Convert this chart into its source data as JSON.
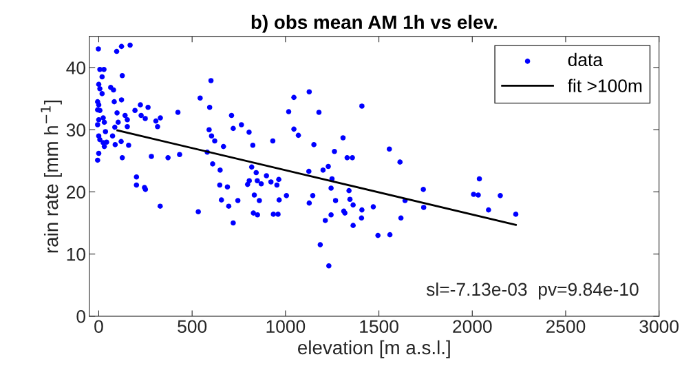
{
  "chart_data": {
    "type": "scatter",
    "title": "b) obs mean AM 1h vs elev.",
    "xlabel": "elevation [m a.s.l.]",
    "ylabel": "rain rate [mm h$^{−1}$]",
    "xlim": [
      -50,
      3000
    ],
    "xticks": [
      0,
      500,
      1000,
      1500,
      2000,
      2500,
      3000
    ],
    "ylim": [
      0,
      45
    ],
    "yticks": [
      0,
      10,
      20,
      30,
      40
    ],
    "grid": false,
    "legend": "top right",
    "marker": "circle",
    "annotations": [
      "sl=-7.13e-03  pv=9.84e-10"
    ],
    "series": [
      {
        "name": "data",
        "color": "#0000ff",
        "x": [
          -2,
          96,
          122,
          168,
          6,
          28,
          18,
          126,
          0,
          6,
          18,
          64,
          79,
          -6,
          0,
          -6,
          6,
          24,
          0,
          30,
          -6,
          36,
          0,
          6,
          24,
          30,
          42,
          0,
          -6,
          83,
          122,
          98,
          141,
          153,
          153,
          104,
          86,
          74,
          88,
          120,
          160,
          126,
          194,
          223,
          264,
          227,
          249,
          306,
          330,
          315,
          424,
          282,
          371,
          433,
          202,
          202,
          245,
          250,
          329,
          543,
          601,
          594,
          591,
          604,
          621,
          581,
          668,
          610,
          650,
          648,
          689,
          657,
          696,
          745,
          533,
          711,
          720,
          764,
          805,
          825,
          932,
          819,
          843,
          898,
          806,
          797,
          849,
          870,
          922,
          964,
          954,
          833,
          860,
          966,
          1005,
          1017,
          1045,
          1045,
          1127,
          1179,
          1409,
          1069,
          1152,
          1308,
          1262,
          1330,
          1358,
          1556,
          1613,
          1125,
          1201,
          1229,
          1249,
          1244,
          1146,
          1127,
          1340,
          1268,
          1345,
          1362,
          1409,
          1470,
          1312,
          1318,
          1244,
          1213,
          1407,
          1362,
          1618,
          1640,
          1738,
          1740,
          1495,
          1559,
          1186,
          1232,
          2038,
          2007,
          2032,
          2150,
          2087,
          2233,
          828,
          850,
          935,
          960,
          720
        ],
        "values": [
          43.0,
          42.6,
          43.4,
          43.6,
          39.7,
          39.7,
          38.5,
          38.7,
          37.3,
          36.6,
          35.8,
          36.8,
          36.4,
          34.5,
          34.0,
          33.2,
          33.1,
          31.9,
          31.6,
          31.2,
          30.8,
          29.7,
          29.0,
          28.4,
          27.9,
          27.3,
          28.0,
          26.2,
          25.1,
          34.5,
          34.8,
          32.7,
          32.3,
          31.6,
          30.5,
          31.2,
          30.4,
          29.0,
          27.6,
          28.1,
          27.5,
          25.5,
          33.1,
          34.0,
          33.6,
          32.3,
          31.8,
          31.4,
          31.9,
          30.5,
          32.8,
          25.7,
          25.5,
          26.0,
          22.4,
          21.1,
          20.7,
          20.4,
          17.7,
          35.1,
          37.9,
          33.6,
          30.0,
          29.0,
          28.2,
          26.4,
          27.3,
          24.5,
          23.5,
          21.1,
          20.8,
          18.7,
          17.7,
          18.6,
          16.8,
          32.3,
          30.2,
          30.8,
          29.6,
          27.5,
          28.2,
          24.0,
          23.1,
          22.6,
          21.8,
          21.2,
          21.8,
          21.3,
          21.6,
          22.0,
          21.1,
          19.5,
          18.6,
          18.7,
          19.4,
          32.9,
          35.2,
          30.1,
          36.1,
          32.8,
          33.8,
          29.1,
          27.6,
          28.7,
          26.5,
          25.5,
          25.5,
          26.9,
          24.8,
          23.3,
          23.5,
          24.1,
          22.1,
          20.6,
          19.4,
          18.2,
          20.2,
          18.6,
          18.8,
          17.9,
          17.1,
          17.6,
          16.9,
          16.6,
          16.3,
          15.4,
          15.8,
          14.6,
          15.8,
          18.6,
          20.4,
          17.5,
          13.0,
          13.1,
          11.5,
          8.1,
          22.1,
          19.6,
          19.5,
          19.4,
          17.1,
          16.4,
          16.6,
          16.3,
          16.4,
          16.4,
          15.0
        ]
      },
      {
        "name": "fit >100m",
        "type": "line",
        "color": "#000000",
        "x": [
          100,
          2233
        ],
        "values": [
          29.9,
          14.7
        ],
        "line_style": "solid",
        "marker": "none"
      }
    ]
  }
}
